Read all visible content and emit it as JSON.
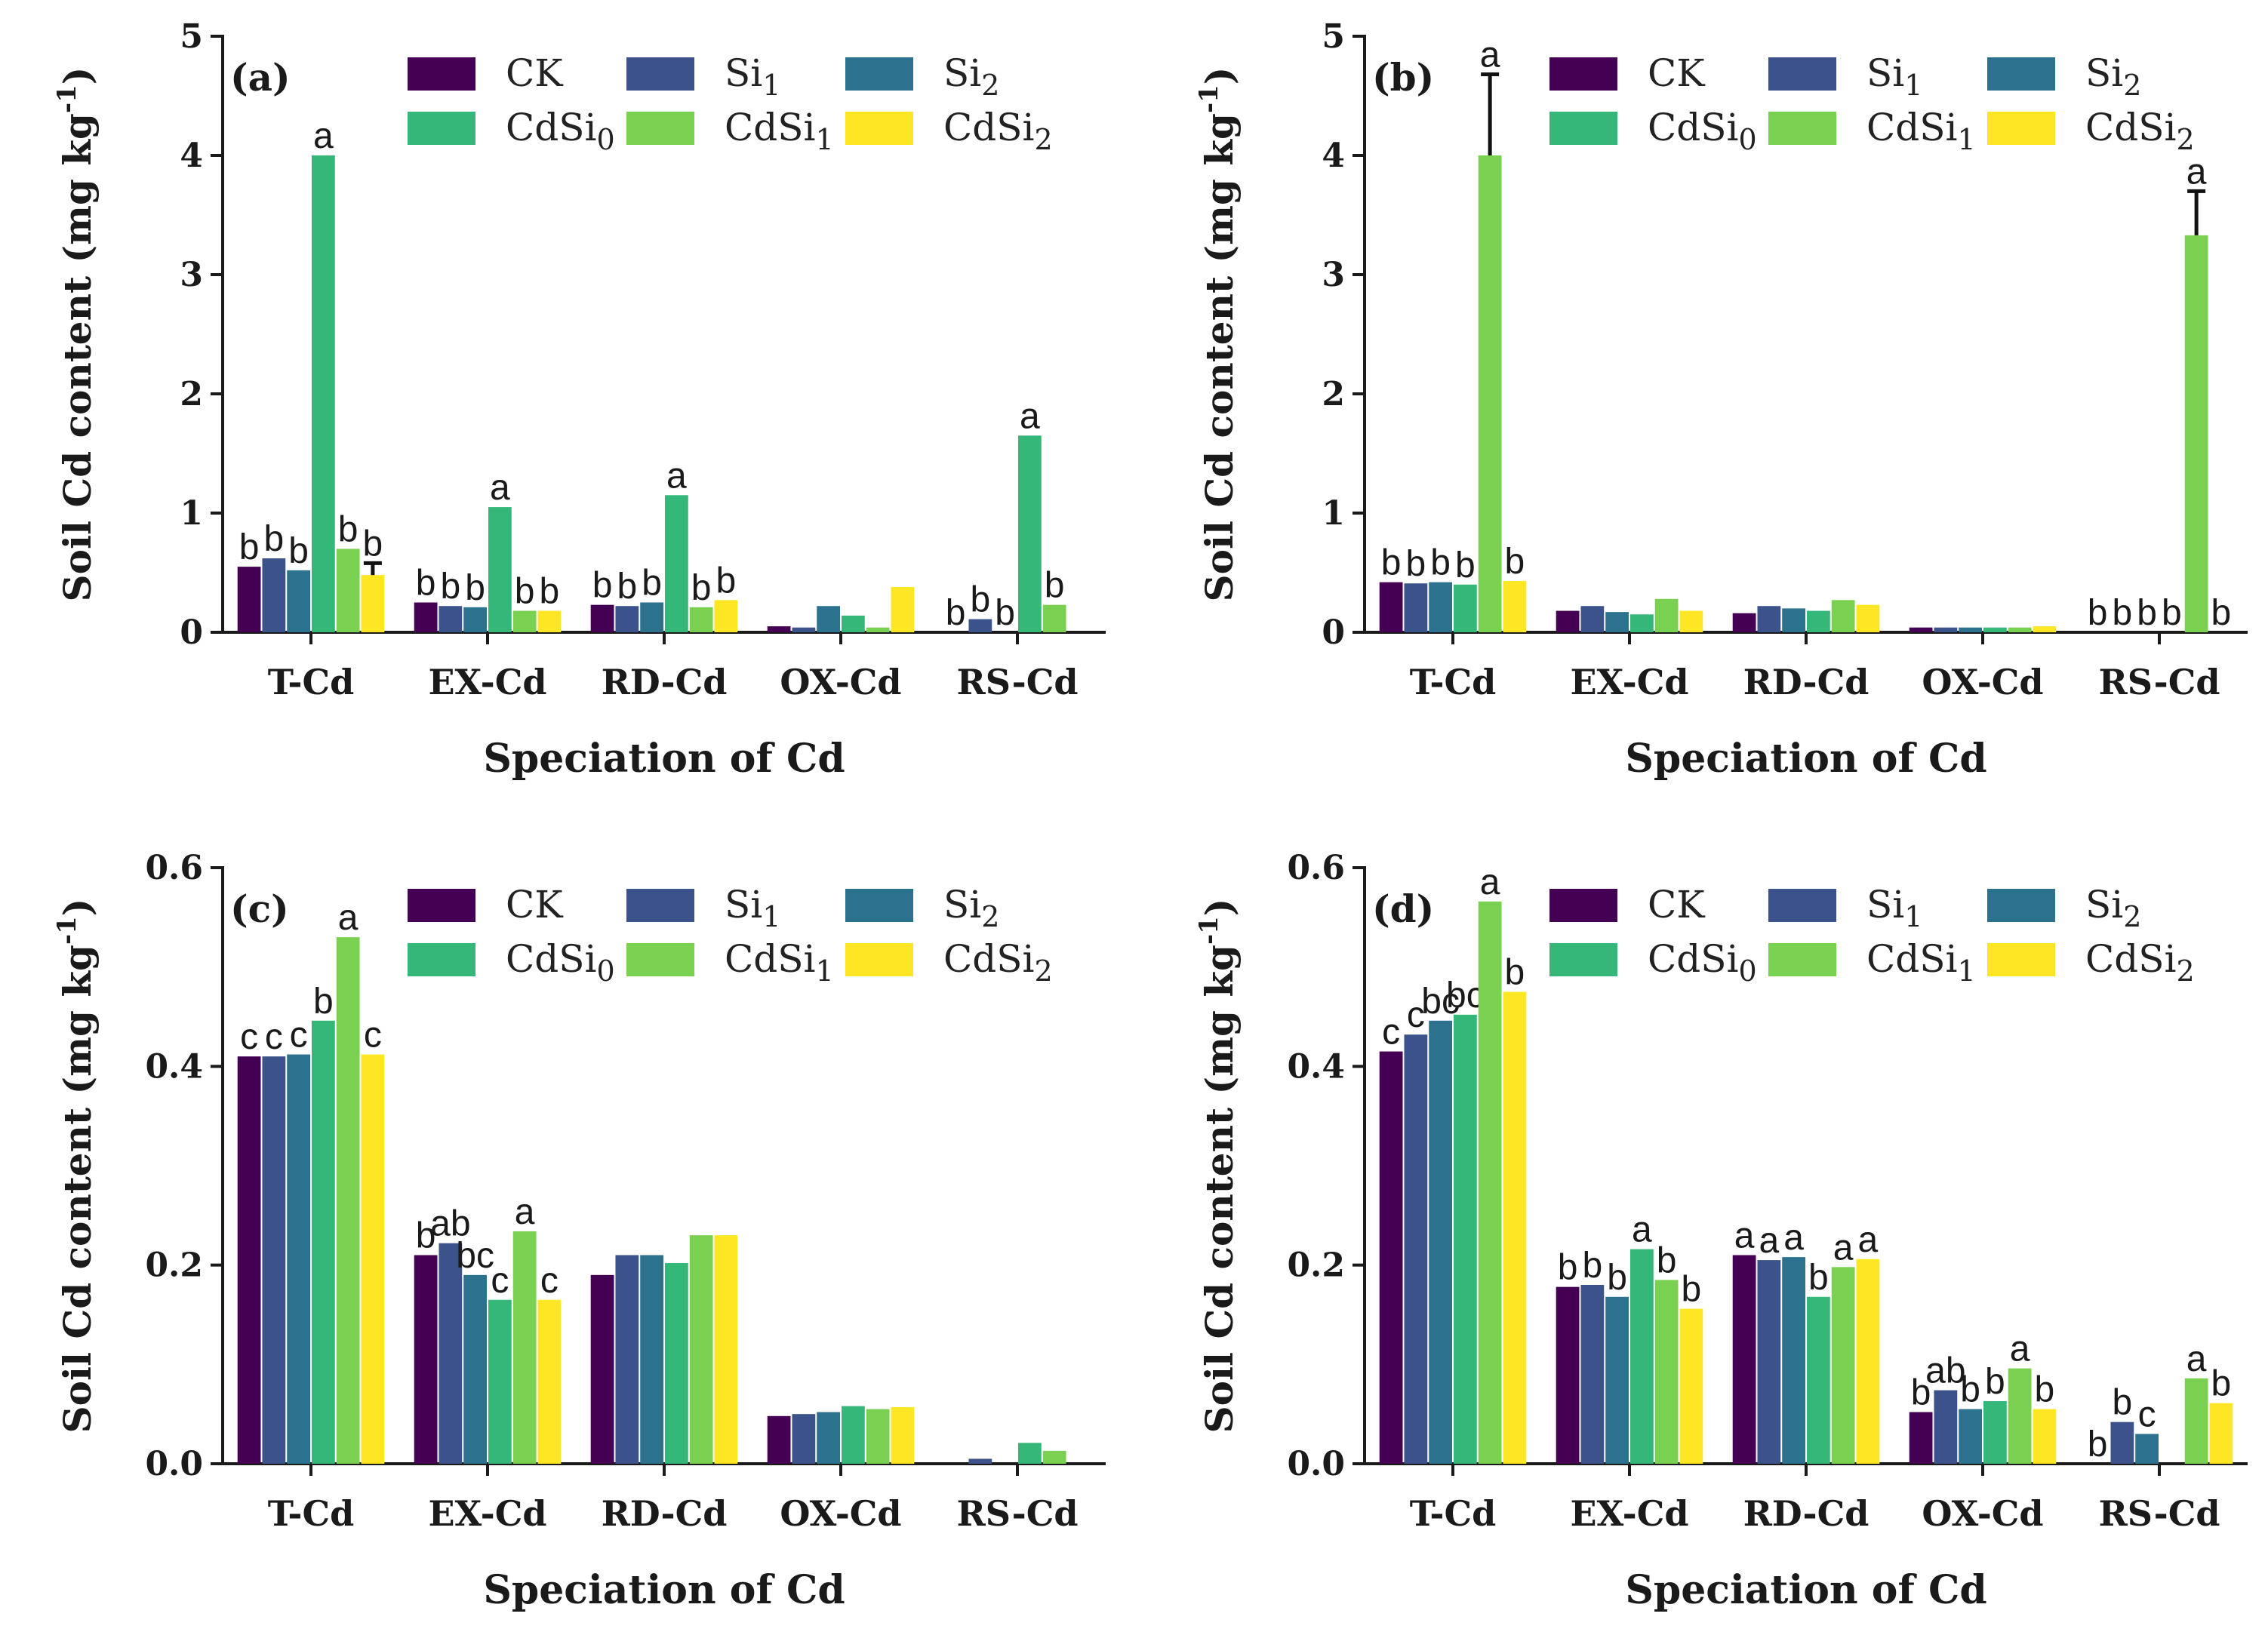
{
  "chart_data": [
    {
      "panel": "(a)",
      "type": "bar",
      "xlabel": "Speciation of Cd",
      "ylabel": "Soil Cd content (mg kg-1)",
      "ylim": [
        0,
        5
      ],
      "yticks": [
        "0",
        "1",
        "2",
        "3",
        "4",
        "5"
      ],
      "categories": [
        "T-Cd",
        "EX-Cd",
        "RD-Cd",
        "OX-Cd",
        "RS-Cd"
      ],
      "series": [
        {
          "name": "CK",
          "values": [
            0.55,
            0.25,
            0.23,
            0.05,
            0.0
          ],
          "labels": [
            "b",
            "b",
            "b",
            "",
            "b"
          ]
        },
        {
          "name": "Si1",
          "values": [
            0.62,
            0.22,
            0.22,
            0.04,
            0.11
          ],
          "labels": [
            "b",
            "b",
            "b",
            "",
            "b"
          ]
        },
        {
          "name": "Si2",
          "values": [
            0.52,
            0.21,
            0.25,
            0.22,
            0.0
          ],
          "labels": [
            "b",
            "b",
            "b",
            "",
            "b"
          ]
        },
        {
          "name": "CdSi0",
          "values": [
            4.0,
            1.05,
            1.15,
            0.14,
            1.65
          ],
          "labels": [
            "a",
            "a",
            "a",
            "",
            "a"
          ]
        },
        {
          "name": "CdSi1",
          "values": [
            0.7,
            0.18,
            0.21,
            0.04,
            0.23
          ],
          "labels": [
            "b",
            "b",
            "b",
            "",
            "b"
          ]
        },
        {
          "name": "CdSi2",
          "values": [
            0.48,
            0.18,
            0.27,
            0.38,
            0.0
          ],
          "labels": [
            "b",
            "b",
            "b",
            "",
            ""
          ]
        }
      ],
      "errors": [
        {
          "series": "CdSi2",
          "category": "T-Cd",
          "value": 0.1
        }
      ]
    },
    {
      "panel": "(b)",
      "type": "bar",
      "xlabel": "Speciation of Cd",
      "ylabel": "Soil Cd content (mg kg-1)",
      "ylim": [
        0,
        5
      ],
      "yticks": [
        "0",
        "1",
        "2",
        "3",
        "4",
        "5"
      ],
      "categories": [
        "T-Cd",
        "EX-Cd",
        "RD-Cd",
        "OX-Cd",
        "RS-Cd"
      ],
      "series": [
        {
          "name": "CK",
          "values": [
            0.42,
            0.18,
            0.16,
            0.04,
            0.0
          ],
          "labels": [
            "b",
            "",
            "",
            "",
            "b"
          ]
        },
        {
          "name": "Si1",
          "values": [
            0.41,
            0.22,
            0.22,
            0.04,
            0.0
          ],
          "labels": [
            "b",
            "",
            "",
            "",
            "b"
          ]
        },
        {
          "name": "Si2",
          "values": [
            0.42,
            0.17,
            0.2,
            0.04,
            0.0
          ],
          "labels": [
            "b",
            "",
            "",
            "",
            "b"
          ]
        },
        {
          "name": "CdSi0",
          "values": [
            0.4,
            0.15,
            0.18,
            0.04,
            0.0
          ],
          "labels": [
            "b",
            "",
            "",
            "",
            "b"
          ]
        },
        {
          "name": "CdSi1",
          "values": [
            4.0,
            0.28,
            0.27,
            0.04,
            3.33
          ],
          "labels": [
            "a",
            "",
            "",
            "",
            "a"
          ]
        },
        {
          "name": "CdSi2",
          "values": [
            0.43,
            0.18,
            0.23,
            0.05,
            0.0
          ],
          "labels": [
            "b",
            "",
            "",
            "",
            "b"
          ]
        }
      ],
      "errors": [
        {
          "series": "CdSi1",
          "category": "T-Cd",
          "value": 0.68
        },
        {
          "series": "CdSi1",
          "category": "RS-Cd",
          "value": 0.37
        }
      ]
    },
    {
      "panel": "(c)",
      "type": "bar",
      "xlabel": "Speciation of Cd",
      "ylabel": "Soil Cd content (mg kg-1)",
      "ylim": [
        0,
        0.6
      ],
      "yticks": [
        "0.0",
        "0.2",
        "0.4",
        "0.6"
      ],
      "categories": [
        "T-Cd",
        "EX-Cd",
        "RD-Cd",
        "OX-Cd",
        "RS-Cd"
      ],
      "series": [
        {
          "name": "CK",
          "values": [
            0.41,
            0.21,
            0.19,
            0.048,
            0.0
          ],
          "labels": [
            "c",
            "b",
            "",
            "",
            ""
          ]
        },
        {
          "name": "Si1",
          "values": [
            0.41,
            0.222,
            0.21,
            0.05,
            0.005
          ],
          "labels": [
            "c",
            "ab",
            "",
            "",
            ""
          ]
        },
        {
          "name": "Si2",
          "values": [
            0.412,
            0.19,
            0.21,
            0.052,
            0.0
          ],
          "labels": [
            "c",
            "bc",
            "",
            "",
            ""
          ]
        },
        {
          "name": "CdSi0",
          "values": [
            0.446,
            0.165,
            0.202,
            0.058,
            0.021
          ],
          "labels": [
            "b",
            "c",
            "",
            "",
            ""
          ]
        },
        {
          "name": "CdSi1",
          "values": [
            0.53,
            0.234,
            0.23,
            0.055,
            0.013
          ],
          "labels": [
            "a",
            "a",
            "",
            "",
            ""
          ]
        },
        {
          "name": "CdSi2",
          "values": [
            0.412,
            0.165,
            0.23,
            0.057,
            0.0
          ],
          "labels": [
            "c",
            "c",
            "",
            "",
            ""
          ]
        }
      ],
      "errors": []
    },
    {
      "panel": "(d)",
      "type": "bar",
      "xlabel": "Speciation of Cd",
      "ylabel": "Soil Cd content (mg kg-1)",
      "ylim": [
        0,
        0.6
      ],
      "yticks": [
        "0.0",
        "0.2",
        "0.4",
        "0.6"
      ],
      "categories": [
        "T-Cd",
        "EX-Cd",
        "RD-Cd",
        "OX-Cd",
        "RS-Cd"
      ],
      "series": [
        {
          "name": "CK",
          "values": [
            0.415,
            0.178,
            0.21,
            0.052,
            0.0
          ],
          "labels": [
            "c",
            "b",
            "a",
            "b",
            "b"
          ]
        },
        {
          "name": "Si1",
          "values": [
            0.432,
            0.18,
            0.205,
            0.074,
            0.042
          ],
          "labels": [
            "c",
            "b",
            "a",
            "ab",
            "b"
          ]
        },
        {
          "name": "Si2",
          "values": [
            0.446,
            0.168,
            0.208,
            0.055,
            0.03
          ],
          "labels": [
            "bc",
            "b",
            "a",
            "b",
            "c"
          ]
        },
        {
          "name": "CdSi0",
          "values": [
            0.452,
            0.216,
            0.168,
            0.063,
            0.0
          ],
          "labels": [
            "bc",
            "a",
            "b",
            "b",
            ""
          ]
        },
        {
          "name": "CdSi1",
          "values": [
            0.566,
            0.185,
            0.198,
            0.096,
            0.086
          ],
          "labels": [
            "a",
            "b",
            "a",
            "a",
            "a"
          ]
        },
        {
          "name": "CdSi2",
          "values": [
            0.475,
            0.156,
            0.206,
            0.055,
            0.061
          ],
          "labels": [
            "b",
            "b",
            "a",
            "b",
            "b"
          ]
        }
      ],
      "errors": []
    }
  ],
  "legend": [
    {
      "base": "CK",
      "sub": "",
      "color": "#440154"
    },
    {
      "base": "Si",
      "sub": "1",
      "color": "#3b528b"
    },
    {
      "base": "Si",
      "sub": "2",
      "color": "#2c728e"
    },
    {
      "base": "CdSi",
      "sub": "0",
      "color": "#35b779"
    },
    {
      "base": "CdSi",
      "sub": "1",
      "color": "#7ad151"
    },
    {
      "base": "CdSi",
      "sub": "2",
      "color": "#fde725"
    }
  ],
  "ylabel_text": {
    "main": "Soil Cd content (mg kg",
    "sup": "-1",
    "close": ")"
  }
}
